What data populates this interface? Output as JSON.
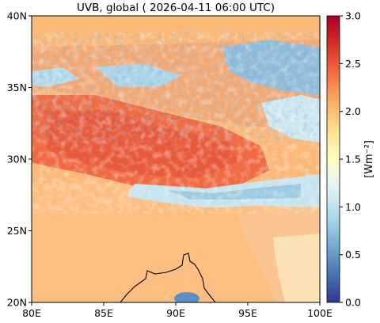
{
  "title": "UVB, global ( 2026-04-11 06:00 UTC)",
  "map": {
    "lon_range": [
      80,
      100
    ],
    "lat_range": [
      20,
      40
    ],
    "x_ticks": [
      {
        "lon": 80,
        "label": "80E"
      },
      {
        "lon": 85,
        "label": "85E"
      },
      {
        "lon": 90,
        "label": "90E"
      },
      {
        "lon": 95,
        "label": "95E"
      },
      {
        "lon": 100,
        "label": "100E"
      }
    ],
    "y_ticks": [
      {
        "lat": 20,
        "label": "20N"
      },
      {
        "lat": 25,
        "label": "25N"
      },
      {
        "lat": 30,
        "label": "30N"
      },
      {
        "lat": 35,
        "label": "35N"
      },
      {
        "lat": 40,
        "label": "40N"
      }
    ]
  },
  "colorbar": {
    "label": "[Wm⁻²]",
    "min": 0.0,
    "max": 3.0,
    "colormap": "RdYlBu_r",
    "ticks": [
      {
        "value": 0.0,
        "label": "0.0"
      },
      {
        "value": 0.5,
        "label": "0.5"
      },
      {
        "value": 1.0,
        "label": "1.0"
      },
      {
        "value": 1.5,
        "label": "1.5"
      },
      {
        "value": 2.0,
        "label": "2.0"
      },
      {
        "value": 2.5,
        "label": "2.5"
      },
      {
        "value": 3.0,
        "label": "3.0"
      }
    ],
    "colors": [
      "#313695",
      "#4575b4",
      "#74add1",
      "#abd9e9",
      "#e0f3f8",
      "#ffffbf",
      "#fee090",
      "#fdae61",
      "#f46d43",
      "#d73027",
      "#a50026"
    ]
  }
}
